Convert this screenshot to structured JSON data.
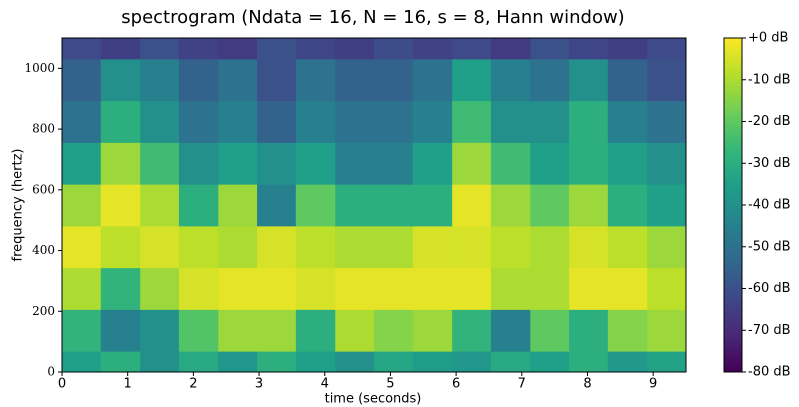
{
  "chart_data": {
    "type": "heatmap",
    "title": "spectrogram (Ndata = 16, N = 16, s = 8, Hann window)",
    "x_label": "time (seconds)",
    "y_label": "frequency (hertz)",
    "x": [
      0,
      0.59,
      1.19,
      1.78,
      2.38,
      2.97,
      3.56,
      4.16,
      4.75,
      5.34,
      5.94,
      6.53,
      7.13,
      7.72,
      8.31,
      8.91,
      9.5
    ],
    "y": [
      0,
      68.75,
      206.25,
      343.75,
      481.25,
      618.75,
      756.25,
      893.75,
      1031.25,
      1100
    ],
    "values": [
      [
        -35,
        -30,
        -40,
        -32,
        -38,
        -30,
        -35,
        -40,
        -33,
        -36,
        -38,
        -32,
        -35,
        -30,
        -37,
        -34
      ],
      [
        -28,
        -45,
        -40,
        -22,
        -12,
        -12,
        -30,
        -10,
        -15,
        -12,
        -28,
        -45,
        -20,
        -30,
        -15,
        -12
      ],
      [
        -10,
        -28,
        -12,
        -5,
        -3,
        -3,
        -5,
        -3,
        -3,
        -3,
        -3,
        -10,
        -10,
        -3,
        -3,
        -8
      ],
      [
        -3,
        -8,
        -5,
        -8,
        -10,
        -5,
        -8,
        -10,
        -10,
        -5,
        -5,
        -8,
        -10,
        -5,
        -8,
        -12
      ],
      [
        -12,
        -3,
        -10,
        -30,
        -12,
        -45,
        -20,
        -30,
        -30,
        -30,
        -3,
        -12,
        -20,
        -12,
        -30,
        -35
      ],
      [
        -35,
        -12,
        -25,
        -40,
        -35,
        -40,
        -35,
        -45,
        -45,
        -35,
        -12,
        -25,
        -35,
        -30,
        -35,
        -40
      ],
      [
        -50,
        -30,
        -40,
        -50,
        -45,
        -55,
        -45,
        -50,
        -50,
        -45,
        -25,
        -40,
        -40,
        -30,
        -45,
        -50
      ],
      [
        -55,
        -40,
        -45,
        -55,
        -50,
        -60,
        -50,
        -55,
        -55,
        -50,
        -35,
        -45,
        -50,
        -40,
        -55,
        -60
      ],
      [
        -62,
        -65,
        -60,
        -64,
        -66,
        -60,
        -63,
        -65,
        -61,
        -64,
        -62,
        -66,
        -60,
        -63,
        -65,
        -62
      ]
    ],
    "xlim": [
      0,
      9.5
    ],
    "xticks": [
      0,
      1,
      2,
      3,
      4,
      5,
      6,
      7,
      8,
      9
    ],
    "ylim": [
      0,
      1100
    ],
    "yticks": [
      0,
      200,
      400,
      600,
      800,
      1000
    ],
    "colormap": "viridis",
    "clim": [
      -80,
      0
    ],
    "cticks": [
      {
        "value": 0,
        "label": "+0 dB"
      },
      {
        "value": -10,
        "label": "-10 dB"
      },
      {
        "value": -20,
        "label": "-20 dB"
      },
      {
        "value": -30,
        "label": "-30 dB"
      },
      {
        "value": -40,
        "label": "-40 dB"
      },
      {
        "value": -50,
        "label": "-50 dB"
      },
      {
        "value": -60,
        "label": "-60 dB"
      },
      {
        "value": -70,
        "label": "-70 dB"
      },
      {
        "value": -80,
        "label": "-80 dB"
      }
    ]
  }
}
